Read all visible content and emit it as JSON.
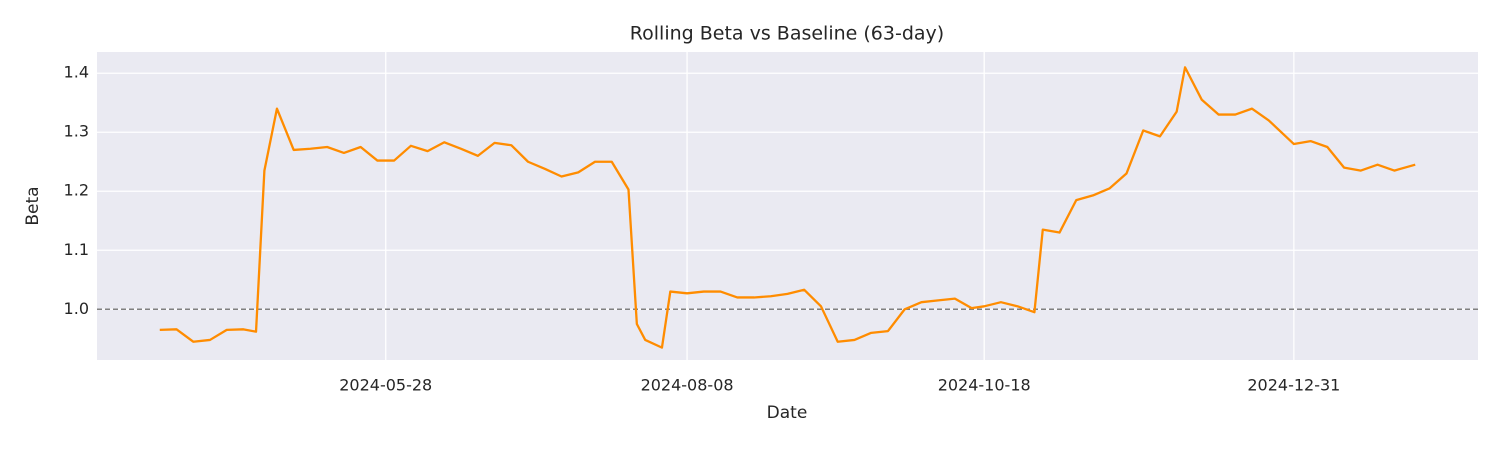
{
  "chart_data": {
    "type": "line",
    "title": "Rolling Beta vs Baseline (63-day)",
    "x_label": "Date",
    "y_label": "Beta",
    "x": [
      "2024-04-04",
      "2024-04-08",
      "2024-04-12",
      "2024-04-16",
      "2024-04-20",
      "2024-04-24",
      "2024-04-27",
      "2024-04-29",
      "2024-05-02",
      "2024-05-06",
      "2024-05-10",
      "2024-05-14",
      "2024-05-18",
      "2024-05-22",
      "2024-05-26",
      "2024-05-30",
      "2024-06-03",
      "2024-06-07",
      "2024-06-11",
      "2024-06-15",
      "2024-06-19",
      "2024-06-23",
      "2024-06-27",
      "2024-07-01",
      "2024-07-05",
      "2024-07-09",
      "2024-07-13",
      "2024-07-17",
      "2024-07-21",
      "2024-07-25",
      "2024-07-27",
      "2024-07-29",
      "2024-08-02",
      "2024-08-04",
      "2024-08-08",
      "2024-08-12",
      "2024-08-16",
      "2024-08-20",
      "2024-08-24",
      "2024-08-28",
      "2024-09-01",
      "2024-09-05",
      "2024-09-09",
      "2024-09-13",
      "2024-09-17",
      "2024-09-21",
      "2024-09-25",
      "2024-09-29",
      "2024-10-03",
      "2024-10-07",
      "2024-10-11",
      "2024-10-15",
      "2024-10-18",
      "2024-10-22",
      "2024-10-26",
      "2024-10-30",
      "2024-11-01",
      "2024-11-05",
      "2024-11-09",
      "2024-11-13",
      "2024-11-17",
      "2024-11-21",
      "2024-11-25",
      "2024-11-29",
      "2024-12-03",
      "2024-12-05",
      "2024-12-09",
      "2024-12-13",
      "2024-12-17",
      "2024-12-21",
      "2024-12-25",
      "2024-12-31",
      "2025-01-04",
      "2025-01-08",
      "2025-01-12",
      "2025-01-16",
      "2025-01-20",
      "2025-01-24",
      "2025-01-29"
    ],
    "series": [
      {
        "name": "Rolling Beta",
        "color": "#ff8c00",
        "values": [
          0.965,
          0.966,
          0.945,
          0.948,
          0.965,
          0.966,
          0.962,
          1.235,
          1.34,
          1.27,
          1.272,
          1.275,
          1.265,
          1.275,
          1.252,
          1.252,
          1.277,
          1.268,
          1.283,
          1.272,
          1.26,
          1.282,
          1.278,
          1.25,
          1.238,
          1.225,
          1.232,
          1.25,
          1.25,
          1.203,
          0.975,
          0.948,
          0.935,
          1.03,
          1.027,
          1.03,
          1.03,
          1.02,
          1.02,
          1.022,
          1.026,
          1.033,
          1.005,
          0.945,
          0.948,
          0.96,
          0.963,
          1.0,
          1.012,
          1.015,
          1.018,
          1.002,
          1.005,
          1.012,
          1.005,
          0.995,
          1.135,
          1.13,
          1.185,
          1.193,
          1.205,
          1.23,
          1.303,
          1.293,
          1.335,
          1.41,
          1.355,
          1.33,
          1.33,
          1.34,
          1.32,
          1.28,
          1.285,
          1.275,
          1.24,
          1.235,
          1.245,
          1.235,
          1.245
        ]
      }
    ],
    "baseline": 1.0,
    "baseline_color": "#808080",
    "xlim": [
      "2024-03-20",
      "2025-02-13"
    ],
    "xticks": [
      "2024-05-28",
      "2024-08-08",
      "2024-10-18",
      "2024-12-31"
    ],
    "ylim": [
      0.914,
      1.436
    ],
    "yticks": [
      1.0,
      1.1,
      1.2,
      1.3,
      1.4
    ],
    "grid": true
  }
}
